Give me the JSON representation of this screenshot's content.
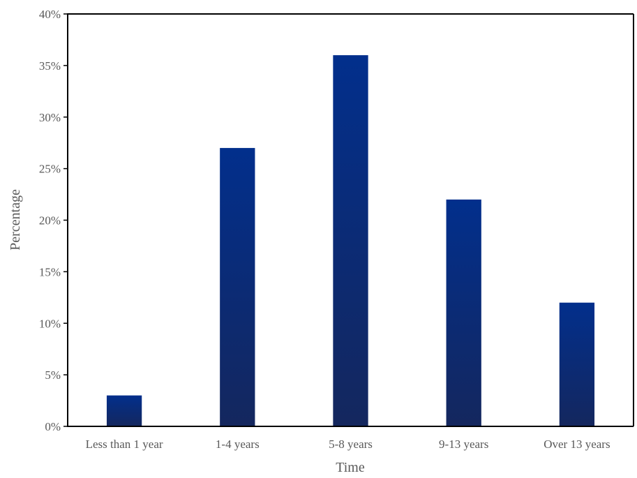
{
  "chart_data": {
    "type": "bar",
    "title": "",
    "xlabel": "Time",
    "ylabel": "Percentage",
    "categories": [
      "Less than 1 year",
      "1-4 years",
      "5-8 years",
      "9-13 years",
      "Over 13 years"
    ],
    "values": [
      3,
      27,
      36,
      22,
      12
    ],
    "ylim": [
      0,
      40
    ],
    "yticks": [
      "0%",
      "5%",
      "10%",
      "15%",
      "20%",
      "25%",
      "30%",
      "35%",
      "40%"
    ],
    "ytick_values": [
      0,
      5,
      10,
      15,
      20,
      25,
      30,
      35,
      40
    ],
    "grid": false,
    "legend": "none",
    "bar_color_top": "#022F8C",
    "bar_color_bottom": "#14275E"
  }
}
